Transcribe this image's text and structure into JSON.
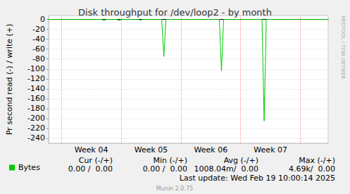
{
  "chart_data": {
    "type": "line",
    "title": "Disk throughput for /dev/loop2 - by month",
    "y_label": "Pr second read (-) / write (+)",
    "categories": [
      null,
      null,
      null,
      null,
      null,
      null,
      null,
      null,
      null,
      null,
      null,
      null,
      null,
      null,
      null,
      null,
      null,
      null,
      null,
      null,
      "Week 04",
      null,
      null,
      null,
      null,
      null,
      null,
      null,
      null,
      null,
      null,
      null,
      null,
      null,
      null,
      null,
      null,
      null,
      null,
      null,
      null,
      null,
      null,
      null,
      null,
      null,
      null,
      null,
      "Week 05",
      null,
      null,
      null,
      null,
      null,
      null,
      null,
      null,
      null,
      null,
      null,
      null,
      null,
      null,
      null,
      null,
      null,
      null,
      null,
      null,
      null,
      null,
      null,
      null,
      null,
      null,
      null,
      "Week 06",
      null,
      null,
      null,
      null,
      null,
      null,
      null,
      null,
      null,
      null,
      null,
      null,
      null,
      null,
      null,
      null,
      null,
      null,
      null,
      null,
      null,
      null,
      null,
      null,
      null,
      null,
      null,
      "Week 07",
      null,
      null,
      null,
      null,
      null,
      null,
      null,
      null,
      null,
      null,
      null,
      null,
      null,
      null,
      null,
      null,
      null,
      null,
      null,
      null,
      null,
      null,
      null,
      null,
      null,
      null,
      null
    ],
    "series": [
      {
        "name": "Bytes",
        "color": "#00cc00",
        "values": [
          0,
          0,
          0,
          0,
          0,
          0,
          0,
          0,
          0,
          0,
          0,
          0,
          0,
          0,
          0,
          0,
          0,
          0,
          0,
          0,
          0,
          0,
          0,
          0,
          0,
          0,
          -2,
          0,
          0,
          0,
          0,
          0,
          0,
          -2,
          0,
          0,
          0,
          0,
          0,
          0,
          0,
          0,
          0,
          -1.5,
          0,
          0,
          0,
          0,
          0,
          0,
          0,
          0,
          0,
          0,
          -75,
          0,
          0,
          0,
          0,
          0,
          0,
          0,
          0,
          0,
          0,
          0,
          0,
          0,
          0,
          0,
          0,
          0,
          0,
          0,
          0,
          0,
          0,
          0,
          0,
          0,
          0,
          -104,
          0,
          0,
          0,
          0,
          0,
          0,
          0,
          0,
          0,
          0,
          0,
          0,
          0,
          0,
          0,
          0,
          0,
          0,
          0,
          -205,
          0,
          0,
          0,
          0,
          0,
          0,
          0,
          0,
          0,
          0,
          0,
          0,
          0,
          0,
          0,
          0,
          0,
          0,
          0,
          0,
          0,
          0,
          0,
          0,
          0,
          0,
          0,
          0,
          0,
          0
        ]
      }
    ],
    "ylim": [
      -250,
      8
    ],
    "yticks": [
      0,
      -20,
      -40,
      -60,
      -80,
      -100,
      -120,
      -140,
      -160,
      -180,
      -200,
      -220,
      -240
    ],
    "grid": true,
    "legend": "bottom",
    "legend_table": {
      "columns": [
        "Cur (-/+)",
        "Min (-/+)",
        "Avg (-/+)",
        "Max (-/+)"
      ],
      "rows": [
        [
          "0.00 /  0.00",
          "0.00 /  0.00",
          "1008.04m/  0.00",
          "4.69k/  0.00"
        ]
      ]
    },
    "annotations": [
      "Last update: Wed Feb 19 10:00:14 2025",
      "Munin 2.0.75",
      "RRDTOOL / TOBI OETIKER"
    ]
  }
}
